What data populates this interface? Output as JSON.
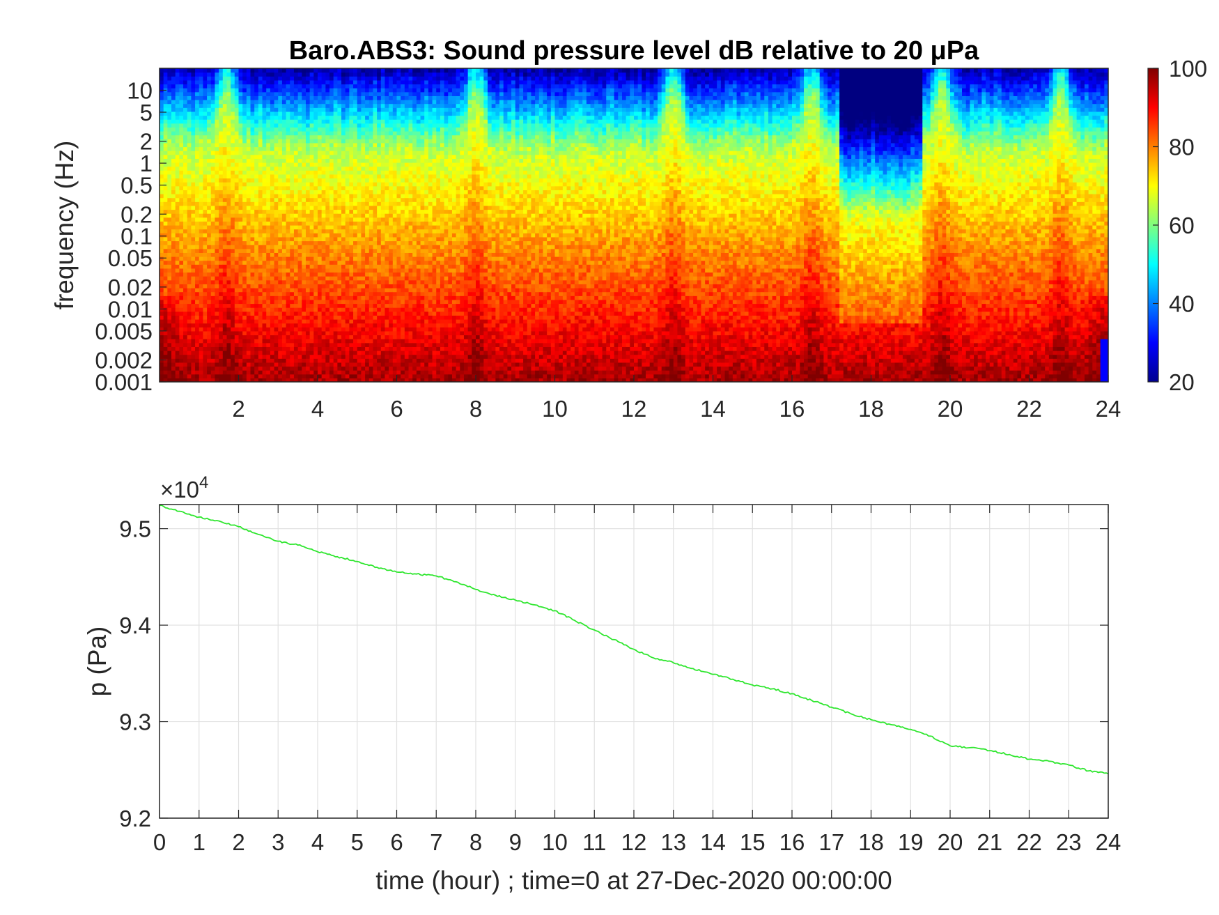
{
  "chart_data": [
    {
      "type": "heatmap",
      "title": "Baro.ABS3: Sound pressure level dB relative to 20 μPa",
      "ylabel": "frequency (Hz)",
      "xlabel": "",
      "y_scale": "log",
      "y_tick_labels": [
        "10",
        "5",
        "2",
        "1",
        "0.5",
        "0.2",
        "0.1",
        "0.05",
        "0.02",
        "0.01",
        "0.005",
        "0.002",
        "0.001"
      ],
      "y_tick_values": [
        10,
        5,
        2,
        1,
        0.5,
        0.2,
        0.1,
        0.05,
        0.02,
        0.01,
        0.005,
        0.002,
        0.001
      ],
      "ylim": [
        0.001,
        20
      ],
      "x_tick_labels": [
        "2",
        "4",
        "6",
        "8",
        "10",
        "12",
        "14",
        "16",
        "18",
        "20",
        "22",
        "24"
      ],
      "x_tick_values": [
        2,
        4,
        6,
        8,
        10,
        12,
        14,
        16,
        18,
        20,
        22,
        24
      ],
      "xlim": [
        0,
        24
      ],
      "colormap": "jet",
      "colorbar": {
        "ticks": [
          "100",
          "80",
          "60",
          "40",
          "20"
        ],
        "range": [
          20,
          100
        ]
      },
      "hot_events_hours": [
        1.7,
        8,
        13,
        16.5,
        19.8,
        22.8
      ],
      "quiet_period_hours": [
        17.2,
        19.3
      ]
    },
    {
      "type": "line",
      "xlabel": "time (hour) ; time=0 at 27-Dec-2020 00:00:00",
      "ylabel": "p (Pa)",
      "y_multiplier_label": "×10",
      "y_multiplier_exponent": "4",
      "x_tick_labels": [
        "0",
        "1",
        "2",
        "3",
        "4",
        "5",
        "6",
        "7",
        "8",
        "9",
        "10",
        "11",
        "12",
        "13",
        "14",
        "15",
        "16",
        "17",
        "18",
        "19",
        "20",
        "21",
        "22",
        "23",
        "24"
      ],
      "y_tick_labels": [
        "9.5",
        "9.4",
        "9.3",
        "9.2"
      ],
      "xlim": [
        0,
        24
      ],
      "ylim": [
        9.2,
        9.525
      ],
      "grid": true,
      "series": [
        {
          "color": "#2ee62e",
          "x": [
            0,
            0.5,
            1,
            1.5,
            2,
            2.5,
            3,
            3.5,
            4,
            4.5,
            5,
            5.5,
            6,
            6.5,
            7,
            7.5,
            8,
            8.5,
            9,
            9.5,
            10,
            10.5,
            11,
            11.5,
            12,
            12.5,
            13,
            13.5,
            14,
            14.5,
            15,
            15.5,
            16,
            16.5,
            17,
            17.5,
            18,
            18.5,
            19,
            19.5,
            20,
            20.5,
            21,
            21.5,
            22,
            22.5,
            23,
            23.5,
            24
          ],
          "values": [
            9.524,
            9.518,
            9.512,
            9.508,
            9.502,
            9.494,
            9.487,
            9.483,
            9.476,
            9.471,
            9.466,
            9.46,
            9.455,
            9.453,
            9.451,
            9.445,
            9.437,
            9.431,
            9.426,
            9.421,
            9.415,
            9.405,
            9.395,
            9.385,
            9.375,
            9.366,
            9.361,
            9.355,
            9.349,
            9.344,
            9.338,
            9.334,
            9.329,
            9.322,
            9.315,
            9.308,
            9.302,
            9.297,
            9.292,
            9.285,
            9.275,
            9.273,
            9.27,
            9.266,
            9.261,
            9.259,
            9.255,
            9.249,
            9.246
          ]
        }
      ]
    }
  ]
}
